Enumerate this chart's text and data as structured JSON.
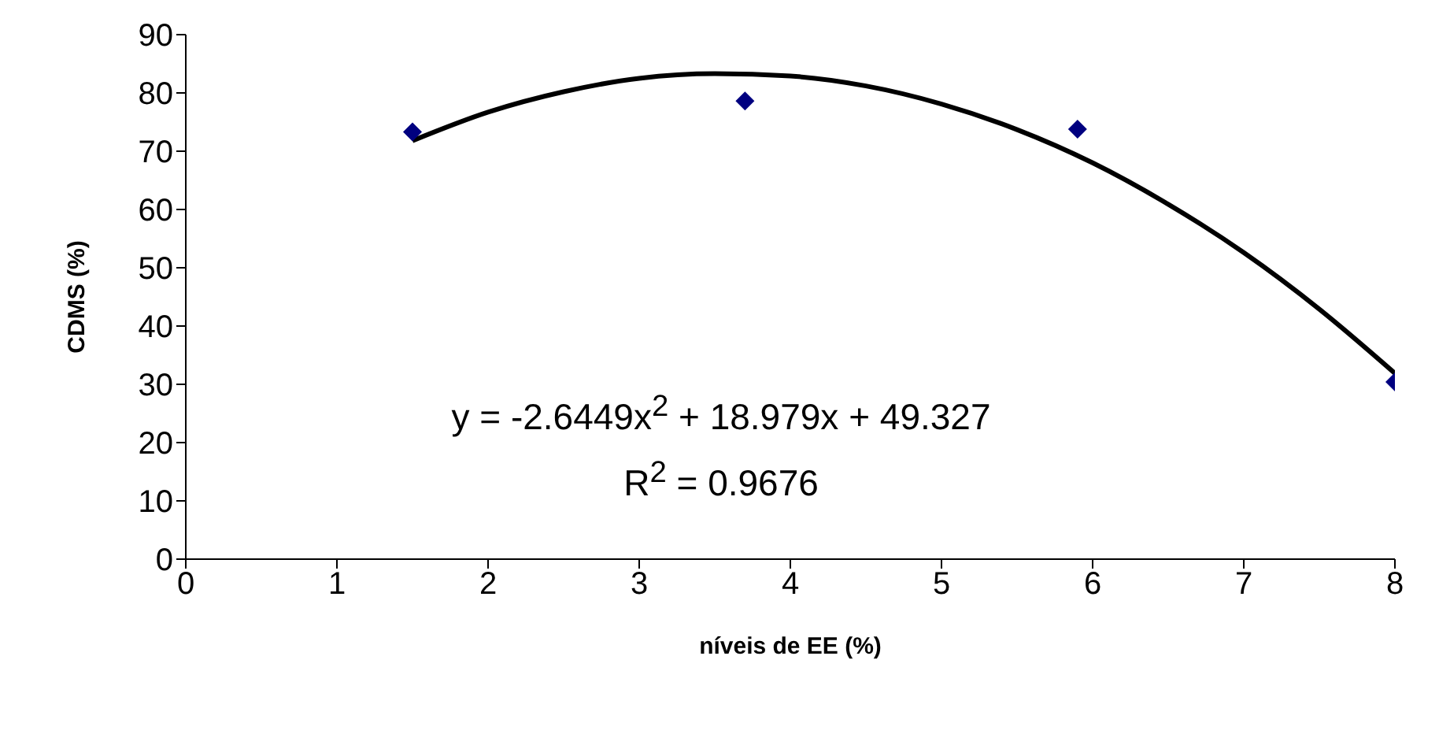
{
  "chart_data": {
    "type": "scatter",
    "xlabel": "níveis de EE (%)",
    "ylabel": "CDMS (%)",
    "xlim": [
      0,
      8
    ],
    "xticks": [
      0,
      1,
      2,
      3,
      4,
      5,
      6,
      7,
      8
    ],
    "ylim": [
      0,
      90
    ],
    "yticks": [
      0,
      10,
      20,
      30,
      40,
      50,
      60,
      70,
      80,
      90
    ],
    "series": [
      {
        "color": "#000080",
        "marker": "diamond",
        "x": [
          1.5,
          3.7,
          5.9,
          8.0
        ],
        "values": [
          73.3,
          78.6,
          73.8,
          30.4
        ]
      },
      {
        "type": "line",
        "color": "#000000",
        "marker": "none",
        "line_style": "solid",
        "x": [
          1.5,
          2,
          2.5,
          3,
          3.5,
          4,
          4.5,
          5,
          5.5,
          6,
          6.5,
          7,
          7.5,
          8
        ],
        "values": [
          71.8,
          76.7,
          80.2,
          82.5,
          83.3,
          82.9,
          81.2,
          78.1,
          73.7,
          68.0,
          60.9,
          52.6,
          42.9,
          31.9
        ]
      }
    ],
    "annotations": [
      "y = -2.6449x$^{2}$ + 18.979x + 49.327",
      "R$^{2}$ = 0.9676"
    ]
  }
}
